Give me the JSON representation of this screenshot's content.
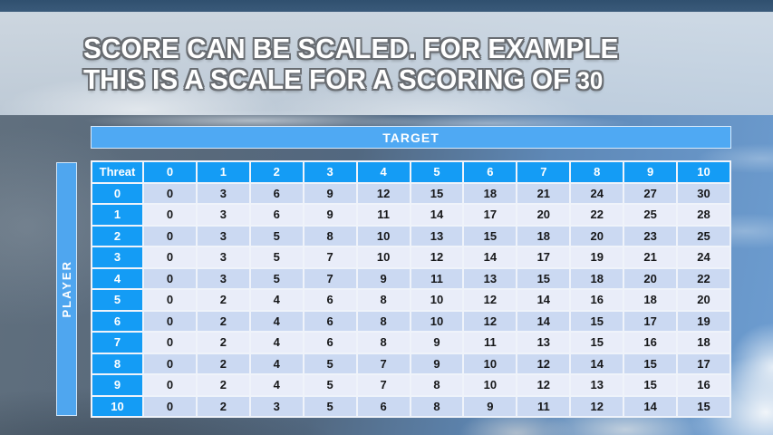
{
  "slide": {
    "title_line1": "SCORE CAN BE SCALED. FOR EXAMPLE",
    "title_line2_text": "THIS IS A SCALE FOR A SCORING OF ",
    "title_line2_number": "30"
  },
  "table": {
    "target_label": "TARGET",
    "player_label": "PLAYER",
    "corner_label": "Threat",
    "target_values": [
      "0",
      "1",
      "2",
      "3",
      "4",
      "5",
      "6",
      "7",
      "8",
      "9",
      "10"
    ],
    "rows": [
      {
        "threat": "0",
        "values": [
          0,
          3,
          6,
          9,
          12,
          15,
          18,
          21,
          24,
          27,
          30
        ]
      },
      {
        "threat": "1",
        "values": [
          0,
          3,
          6,
          9,
          11,
          14,
          17,
          20,
          22,
          25,
          28
        ]
      },
      {
        "threat": "2",
        "values": [
          0,
          3,
          5,
          8,
          10,
          13,
          15,
          18,
          20,
          23,
          25
        ]
      },
      {
        "threat": "3",
        "values": [
          0,
          3,
          5,
          7,
          10,
          12,
          14,
          17,
          19,
          21,
          24
        ]
      },
      {
        "threat": "4",
        "values": [
          0,
          3,
          5,
          7,
          9,
          11,
          13,
          15,
          18,
          20,
          22
        ]
      },
      {
        "threat": "5",
        "values": [
          0,
          2,
          4,
          6,
          8,
          10,
          12,
          14,
          16,
          18,
          20
        ]
      },
      {
        "threat": "6",
        "values": [
          0,
          2,
          4,
          6,
          8,
          10,
          12,
          14,
          15,
          17,
          19
        ]
      },
      {
        "threat": "7",
        "values": [
          0,
          2,
          4,
          6,
          8,
          9,
          11,
          13,
          15,
          16,
          18
        ]
      },
      {
        "threat": "8",
        "values": [
          0,
          2,
          4,
          5,
          7,
          9,
          10,
          12,
          14,
          15,
          17
        ]
      },
      {
        "threat": "9",
        "values": [
          0,
          2,
          4,
          5,
          7,
          8,
          10,
          12,
          13,
          15,
          16
        ]
      },
      {
        "threat": "10",
        "values": [
          0,
          2,
          3,
          5,
          6,
          8,
          9,
          11,
          12,
          14,
          15
        ]
      }
    ]
  },
  "colors": {
    "header_blue": "#149CF5",
    "bar_blue": "#4FA9F3",
    "player_bar_blue": "#4FA6EF",
    "row_even": "#CBD9F2",
    "row_odd": "#E9EDF9",
    "grid_border": "#EFF3FA",
    "title_text": "#FFFFFF",
    "title_outline": "#696D72"
  }
}
